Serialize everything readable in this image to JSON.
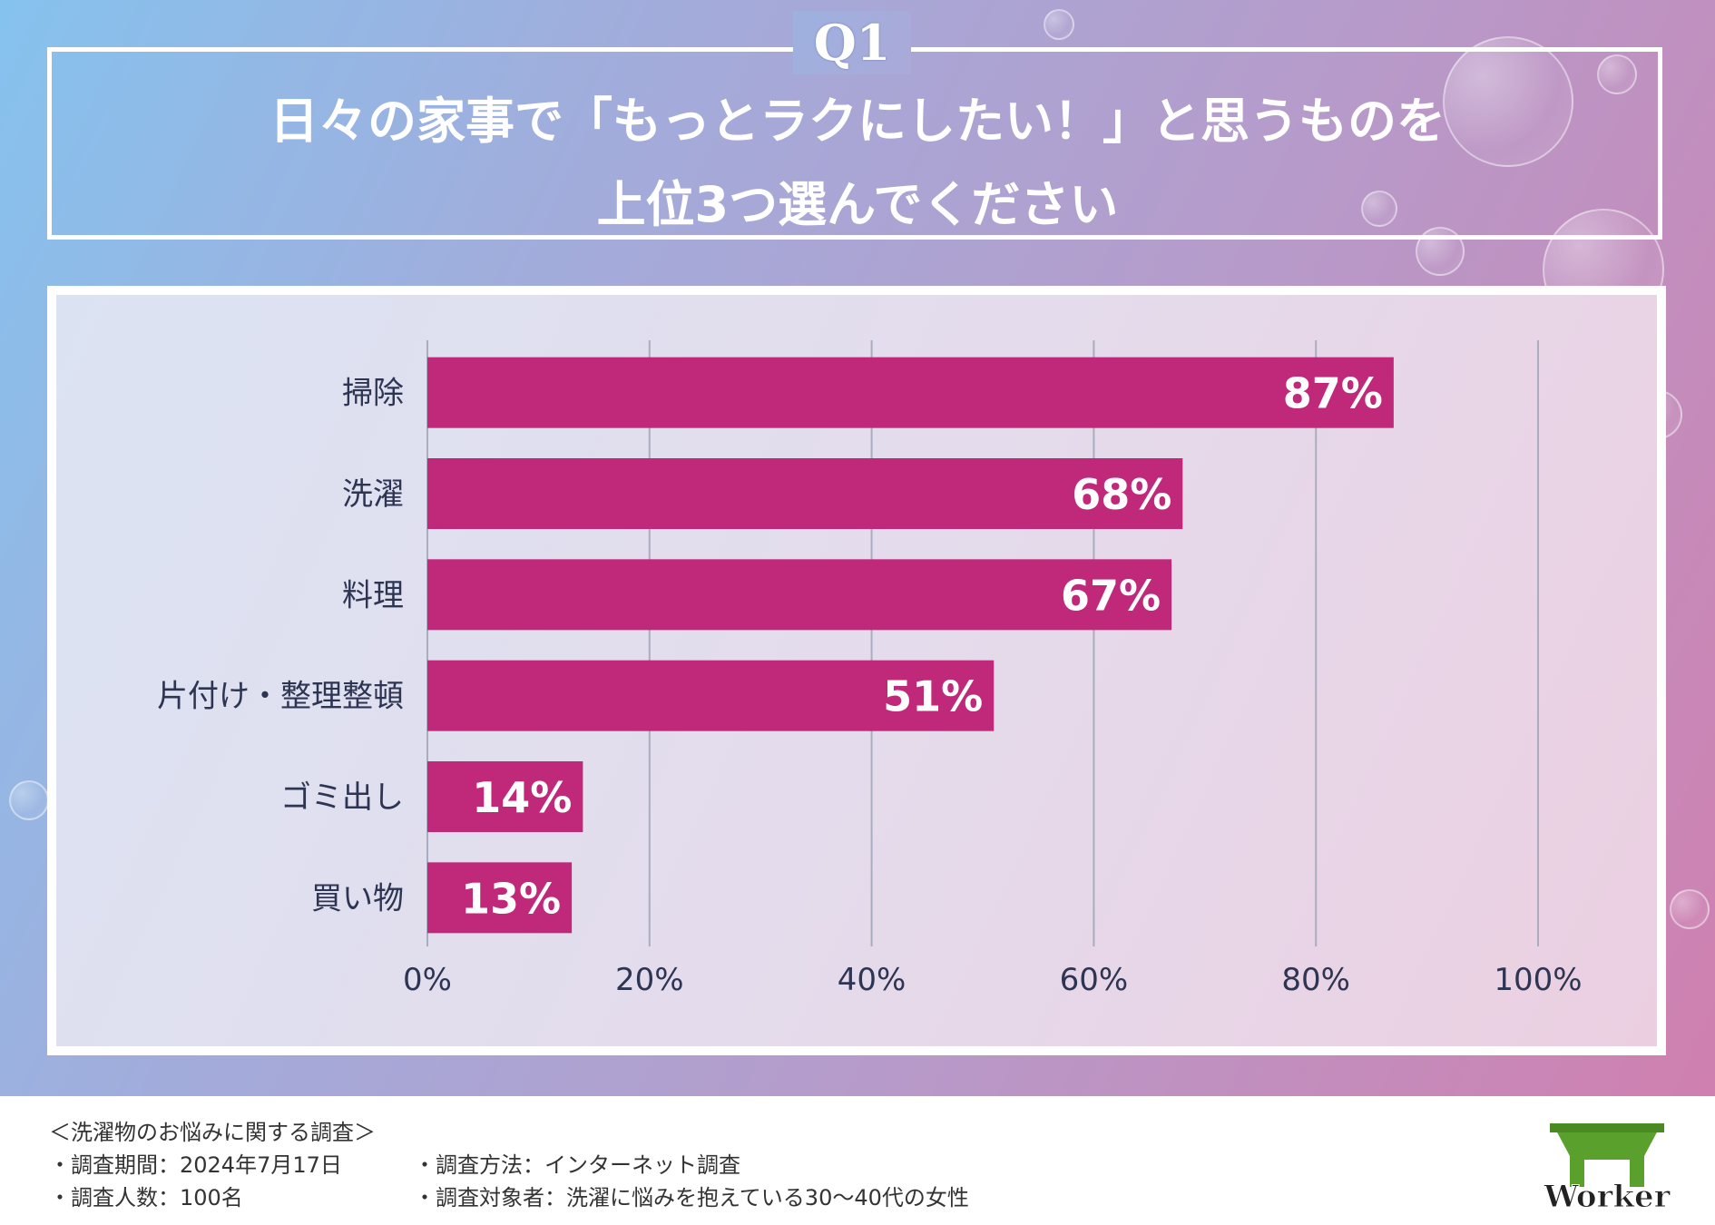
{
  "header": {
    "q_label": "Q1",
    "question_line1": "日々の家事で「もっとラクにしたい！」と思うものを",
    "question_line2": "上位3つ選んでください"
  },
  "chart_data": {
    "type": "bar",
    "orientation": "horizontal",
    "categories": [
      "掃除",
      "洗濯",
      "料理",
      "片付け・整理整頓",
      "ゴミ出し",
      "買い物"
    ],
    "values": [
      87,
      68,
      67,
      51,
      14,
      13
    ],
    "value_labels": [
      "87%",
      "68%",
      "67%",
      "51%",
      "14%",
      "13%"
    ],
    "xlim": [
      0,
      100
    ],
    "xticks": [
      0,
      20,
      40,
      60,
      80,
      100
    ],
    "xtick_labels": [
      "0%",
      "20%",
      "40%",
      "60%",
      "80%",
      "100%"
    ],
    "grid": true,
    "bar_color": "#c0297a",
    "title": "",
    "xlabel": "",
    "ylabel": ""
  },
  "footer": {
    "survey_title": "＜洗濯物のお悩みに関する調査＞",
    "period": "・調査期間：2024年7月17日",
    "count": "・調査人数：100名",
    "method": "・調査方法：インターネット調査",
    "target": "・調査対象者：洗濯に悩みを抱えている30〜40代の女性",
    "logo_text": "Worker"
  },
  "colors": {
    "accent": "#c0297a",
    "text_dark": "#2e3553",
    "logo_green": "#5aa02c"
  }
}
